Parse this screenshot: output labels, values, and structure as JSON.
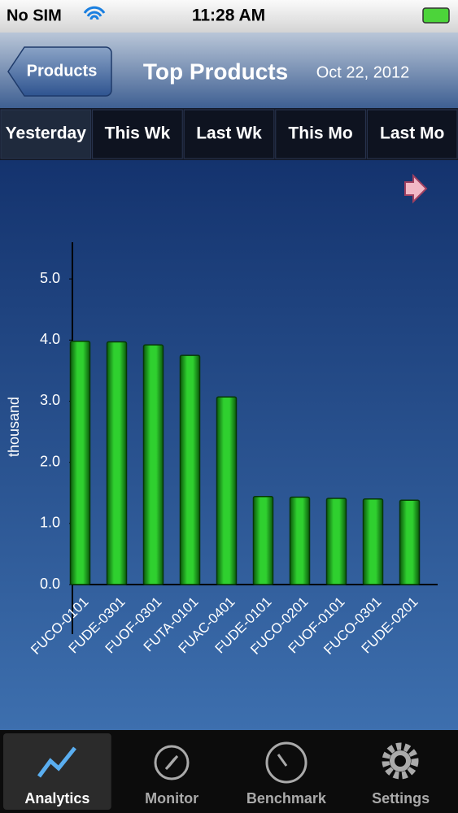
{
  "status_bar": {
    "carrier": "No SIM",
    "time": "11:28 AM"
  },
  "nav_bar": {
    "back": "Products",
    "title": "Top Products",
    "date": "Oct 22, 2012"
  },
  "segments": {
    "items": [
      "Yesterday",
      "This Wk",
      "Last Wk",
      "This Mo",
      "Last Mo"
    ],
    "selected": 0
  },
  "chart_data": {
    "type": "bar",
    "y_label": "thousand",
    "categories": [
      "FUCO-0101",
      "FUDE-0301",
      "FUOF-0301",
      "FUTA-0101",
      "FUAC-0401",
      "FUDE-0101",
      "FUCO-0201",
      "FUOF-0101",
      "FUCO-0301",
      "FUDE-0201"
    ],
    "values": [
      3.98,
      3.97,
      3.92,
      3.75,
      3.07,
      1.44,
      1.43,
      1.41,
      1.4,
      1.38
    ],
    "color": "#22c322",
    "ylim": [
      0,
      5.6
    ],
    "yticks": [
      {
        "value": 0,
        "label": "0.0"
      },
      {
        "value": 1,
        "label": "1.0"
      },
      {
        "value": 2,
        "label": "2.0"
      },
      {
        "value": 3,
        "label": "3.0"
      },
      {
        "value": 4,
        "label": "4.0"
      },
      {
        "value": 5,
        "label": "5.0"
      }
    ],
    "grid": false
  },
  "tab_bar": {
    "items": [
      "Analytics",
      "Monitor",
      "Benchmark",
      "Settings"
    ],
    "selected": 0
  }
}
